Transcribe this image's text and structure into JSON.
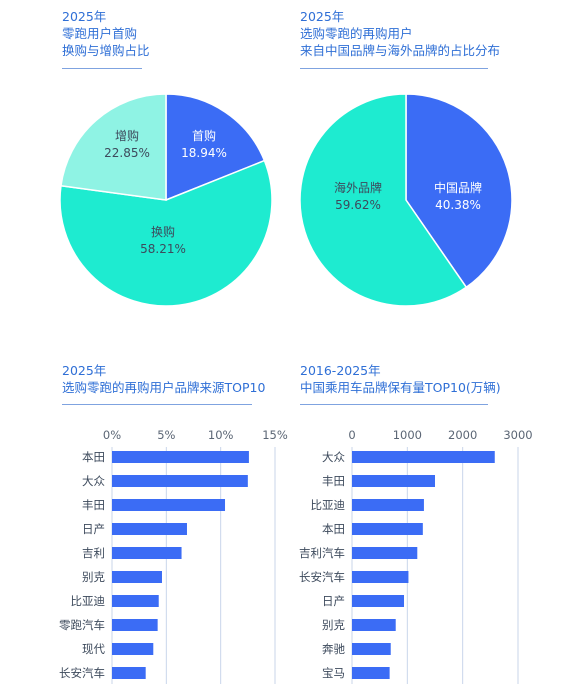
{
  "colors": {
    "blue": "#3b6cf5",
    "teal": "#1eebd0",
    "light_teal": "#8ff3e4",
    "grid": "#c9d6ea"
  },
  "chart_data": [
    {
      "type": "pie",
      "title": [
        "2025年",
        "零跑用户首购",
        "换购与增购占比"
      ],
      "slices": [
        {
          "label": "首购",
          "value": 18.94,
          "value_text": "18.94%",
          "color": "#3b6cf5"
        },
        {
          "label": "换购",
          "value": 58.21,
          "value_text": "58.21%",
          "color": "#1eebd0"
        },
        {
          "label": "增购",
          "value": 22.85,
          "value_text": "22.85%",
          "color": "#8ff3e4"
        }
      ]
    },
    {
      "type": "pie",
      "title": [
        "2025年",
        "选购零跑的再购用户",
        "来自中国品牌与海外品牌的占比分布"
      ],
      "slices": [
        {
          "label": "中国品牌",
          "value": 40.38,
          "value_text": "40.38%",
          "color": "#3b6cf5"
        },
        {
          "label": "海外品牌",
          "value": 59.62,
          "value_text": "59.62%",
          "color": "#1eebd0"
        }
      ]
    },
    {
      "type": "bar",
      "orientation": "horizontal",
      "title": [
        "2025年",
        "选购零跑的再购用户品牌来源TOP10"
      ],
      "categories": [
        "本田",
        "大众",
        "丰田",
        "日产",
        "吉利",
        "别克",
        "比亚迪",
        "零跑汽车",
        "现代",
        "长安汽车"
      ],
      "values": [
        12.6,
        12.5,
        10.4,
        6.9,
        6.4,
        4.6,
        4.3,
        4.2,
        3.8,
        3.1
      ],
      "xlim": [
        0,
        15
      ],
      "ticks": [
        0,
        5,
        10,
        15
      ],
      "tick_labels": [
        "0%",
        "5%",
        "10%",
        "15%"
      ],
      "grid": true
    },
    {
      "type": "bar",
      "orientation": "horizontal",
      "title": [
        "2016-2025年",
        "中国乘用车品牌保有量TOP10(万辆)"
      ],
      "categories": [
        "大众",
        "丰田",
        "比亚迪",
        "本田",
        "吉利汽车",
        "长安汽车",
        "日产",
        "别克",
        "奔驰",
        "宝马"
      ],
      "values": [
        2580,
        1500,
        1300,
        1280,
        1180,
        1020,
        940,
        790,
        700,
        680
      ],
      "xlim": [
        0,
        3000
      ],
      "ticks": [
        0,
        1000,
        2000,
        3000
      ],
      "tick_labels": [
        "0",
        "1000",
        "2000",
        "3000"
      ],
      "grid": true
    }
  ]
}
